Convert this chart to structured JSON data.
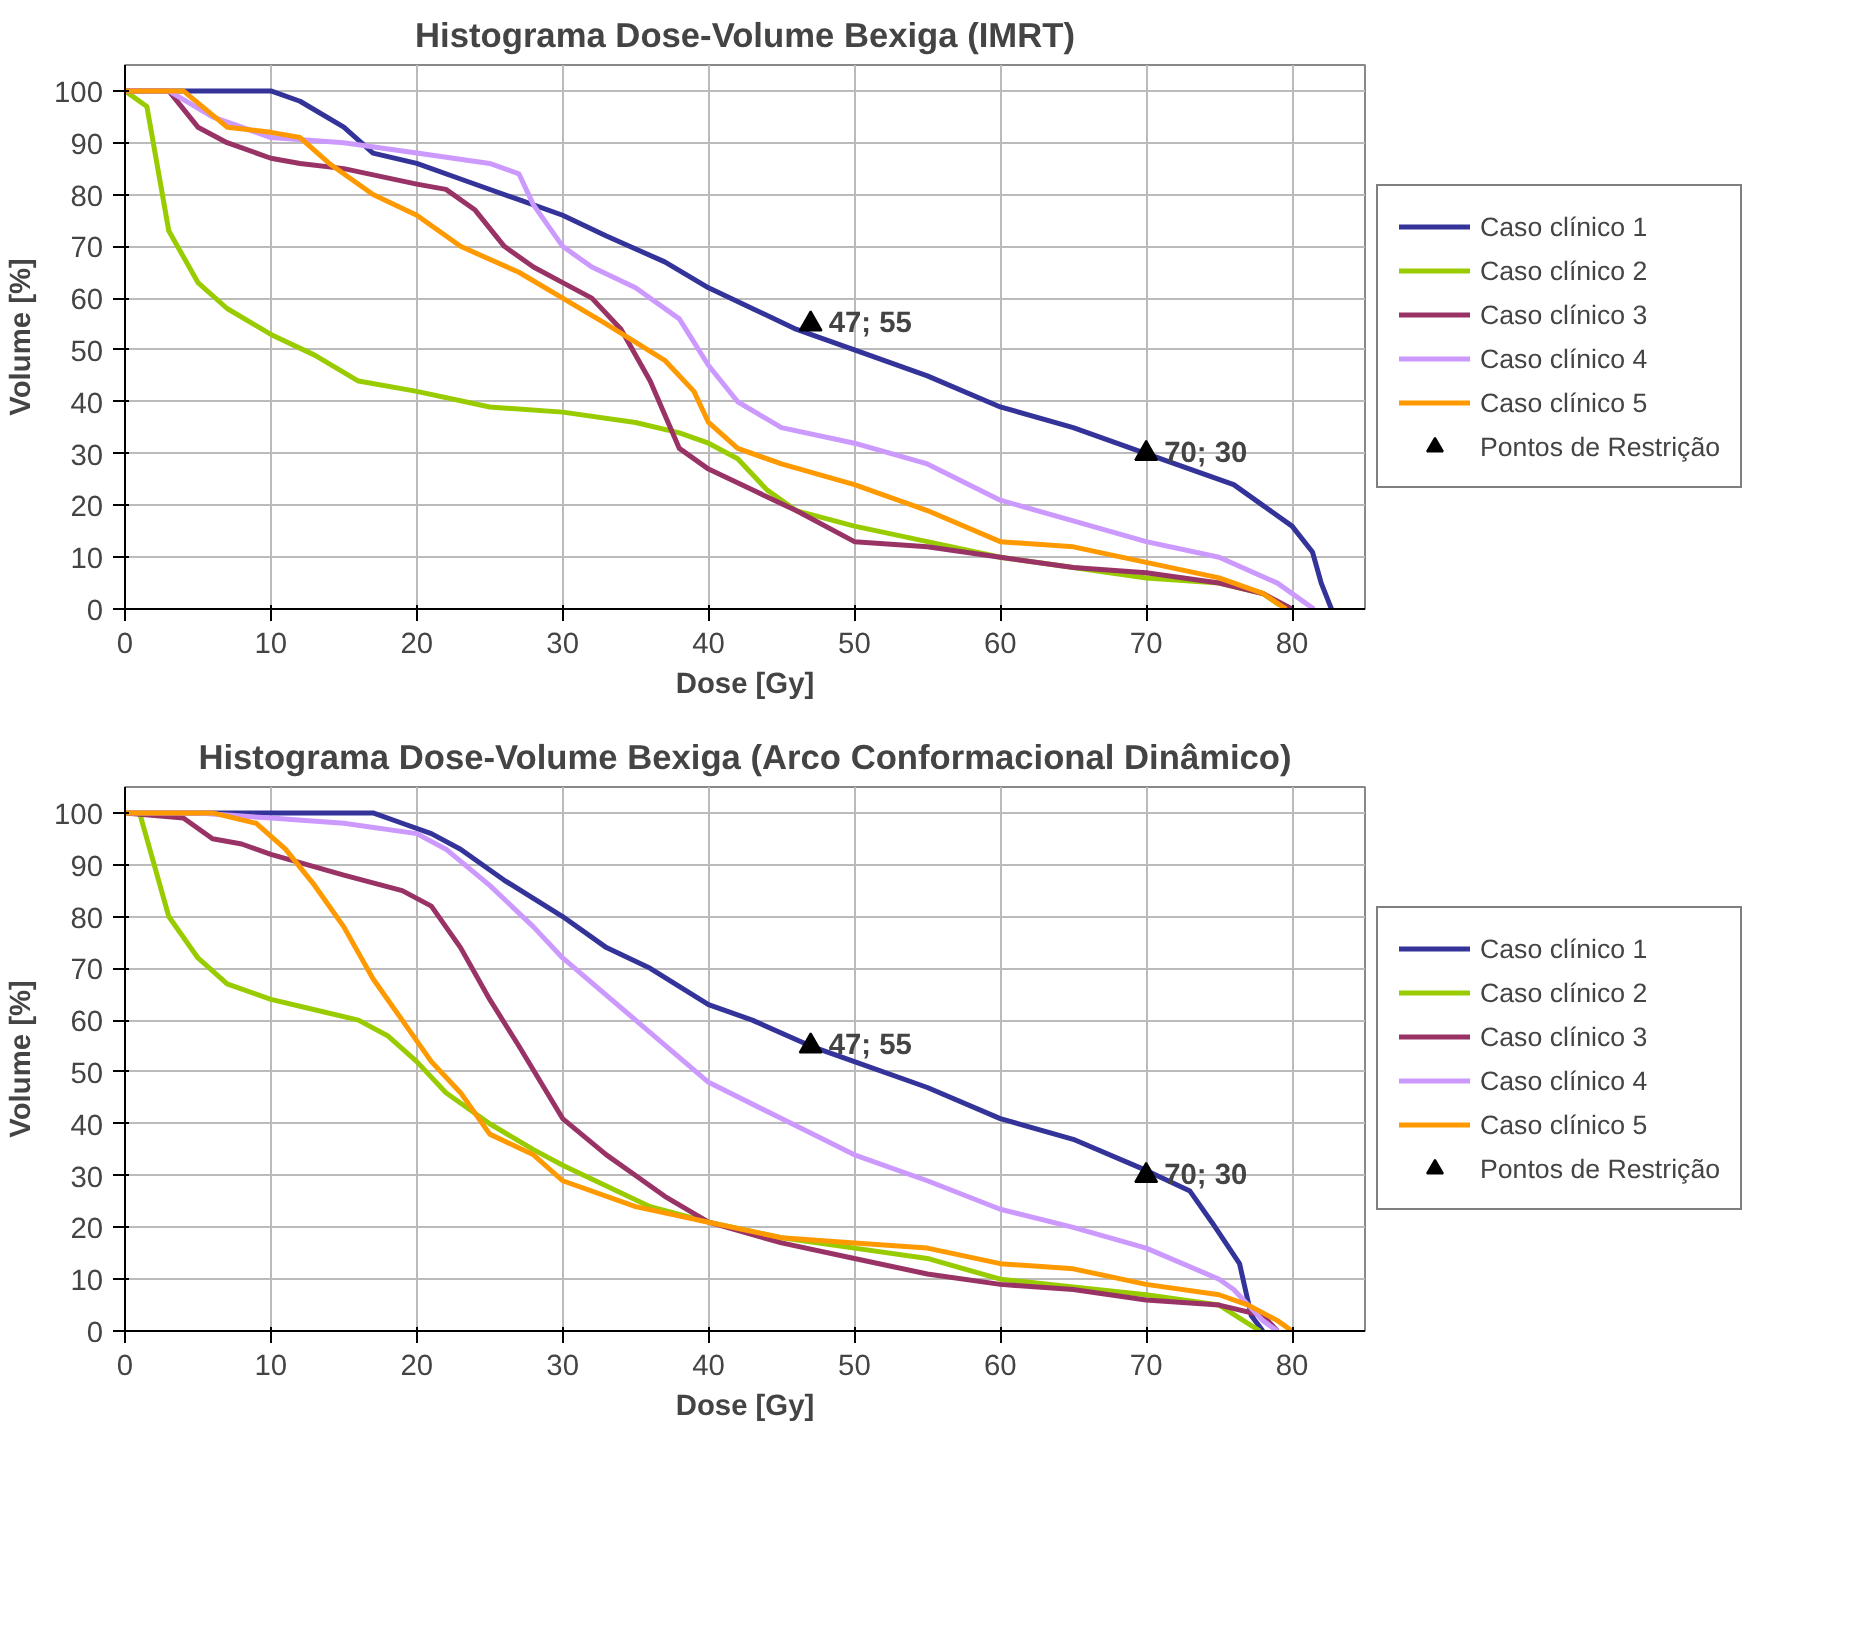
{
  "chart_data": [
    {
      "type": "line",
      "title": "Histograma Dose-Volume Bexiga (IMRT)",
      "xlabel": "Dose [Gy]",
      "ylabel": "Volume [%]",
      "xlim": [
        0,
        85
      ],
      "ylim": [
        0,
        105
      ],
      "xticks": [
        0,
        10,
        20,
        30,
        40,
        50,
        60,
        70,
        80
      ],
      "yticks": [
        0,
        10,
        20,
        30,
        40,
        50,
        60,
        70,
        80,
        90,
        100
      ],
      "grid": true,
      "legend": "right",
      "marker": "none",
      "line_style": "solid",
      "series": [
        {
          "name": "Caso clínico 1",
          "color": "#333399",
          "x": [
            0,
            10,
            12,
            15,
            17,
            20,
            23,
            27,
            30,
            33,
            37,
            40,
            43,
            46,
            47,
            50,
            55,
            60,
            65,
            70,
            73,
            76,
            78,
            80,
            81.4,
            82,
            82.7
          ],
          "values": [
            100,
            100,
            98,
            93,
            88,
            86,
            83,
            79,
            76,
            72,
            67,
            62,
            58,
            54,
            53,
            50,
            45,
            39,
            35,
            30,
            27,
            24,
            20,
            16,
            11,
            5,
            0
          ]
        },
        {
          "name": "Caso clínico 2",
          "color": "#99cc00",
          "x": [
            0,
            1.5,
            3,
            5,
            7,
            10,
            13,
            16,
            20,
            25,
            30,
            35,
            38,
            40,
            42,
            44,
            46,
            50,
            55,
            60,
            65,
            70,
            75,
            78,
            79,
            80
          ],
          "values": [
            100,
            97,
            73,
            63,
            58,
            53,
            49,
            44,
            42,
            39,
            38,
            36,
            34,
            32,
            29,
            23,
            19,
            16,
            13,
            10,
            8,
            6,
            5,
            3,
            1,
            0
          ]
        },
        {
          "name": "Caso clínico 3",
          "color": "#993366",
          "x": [
            0,
            3,
            5,
            7,
            10,
            12,
            15,
            20,
            22,
            24,
            26,
            28,
            30,
            32,
            34,
            36,
            38,
            40,
            43,
            46,
            50,
            55,
            60,
            65,
            70,
            75,
            78,
            80
          ],
          "values": [
            100,
            100,
            93,
            90,
            87,
            86,
            85,
            82,
            81,
            77,
            70,
            66,
            63,
            60,
            54,
            44,
            31,
            27,
            23,
            19,
            13,
            12,
            10,
            8,
            7,
            5,
            3,
            0
          ]
        },
        {
          "name": "Caso clínico 4",
          "color": "#cc99ff",
          "x": [
            0,
            3,
            6,
            10,
            15,
            20,
            25,
            27,
            28,
            30,
            32,
            35,
            38,
            40,
            42,
            45,
            50,
            55,
            60,
            65,
            70,
            75,
            79,
            81.5
          ],
          "values": [
            100,
            100,
            95,
            91,
            90,
            88,
            86,
            84,
            78,
            70,
            66,
            62,
            56,
            47,
            40,
            35,
            32,
            28,
            21,
            17,
            13,
            10,
            5,
            0
          ]
        },
        {
          "name": "Caso clínico 5",
          "color": "#ff9900",
          "x": [
            0,
            4,
            7,
            10,
            12,
            14,
            17,
            20,
            23,
            27,
            30,
            33,
            37,
            39,
            40,
            42,
            45,
            50,
            55,
            60,
            65,
            70,
            75,
            78,
            79.6
          ],
          "values": [
            100,
            100,
            93,
            92,
            91,
            86,
            80,
            76,
            70,
            65,
            60,
            55,
            48,
            42,
            36,
            31,
            28,
            24,
            19,
            13,
            12,
            9,
            6,
            3,
            0
          ]
        },
        {
          "name": "Pontos de Restrição",
          "type": "scatter",
          "marker": "triangle",
          "color": "#000000",
          "x": [
            47,
            70
          ],
          "values": [
            55,
            30
          ],
          "value_labels": [
            "47; 55",
            "70; 30"
          ]
        }
      ]
    },
    {
      "type": "line",
      "title": "Histograma Dose-Volume Bexiga (Arco Conformacional Dinâmico)",
      "xlabel": "Dose [Gy]",
      "ylabel": "Volume [%]",
      "xlim": [
        0,
        85
      ],
      "ylim": [
        0,
        105
      ],
      "xticks": [
        0,
        10,
        20,
        30,
        40,
        50,
        60,
        70,
        80
      ],
      "yticks": [
        0,
        10,
        20,
        30,
        40,
        50,
        60,
        70,
        80,
        90,
        100
      ],
      "grid": true,
      "legend": "right",
      "marker": "none",
      "line_style": "solid",
      "series": [
        {
          "name": "Caso clínico 1",
          "color": "#333399",
          "x": [
            0,
            17,
            19,
            21,
            23,
            26,
            30,
            33,
            36,
            40,
            43,
            47,
            50,
            55,
            60,
            65,
            70,
            73,
            74.5,
            76.4,
            77.2,
            78
          ],
          "values": [
            100,
            100,
            98,
            96,
            93,
            87,
            80,
            74,
            70,
            63,
            60,
            55,
            52,
            47,
            41,
            37,
            31,
            27,
            21,
            13,
            3,
            0
          ]
        },
        {
          "name": "Caso clínico 2",
          "color": "#99cc00",
          "x": [
            0,
            1,
            3,
            5,
            7,
            10,
            13,
            16,
            18,
            20,
            22,
            25,
            28,
            30,
            33,
            36,
            40,
            45,
            50,
            55,
            60,
            65,
            70,
            75,
            77.8
          ],
          "values": [
            100,
            100,
            80,
            72,
            67,
            64,
            62,
            60,
            57,
            52,
            46,
            40,
            35,
            32,
            28,
            24,
            21,
            18,
            16,
            14,
            10,
            8.5,
            7,
            5,
            0
          ]
        },
        {
          "name": "Caso clínico 3",
          "color": "#993366",
          "x": [
            0,
            4,
            6,
            8,
            10,
            15,
            19,
            21,
            23,
            25,
            27,
            30,
            33,
            35,
            37,
            40,
            45,
            50,
            55,
            60,
            65,
            70,
            75,
            78,
            79
          ],
          "values": [
            100,
            99,
            95,
            94,
            92,
            88,
            85,
            82,
            74,
            64,
            55,
            41,
            34,
            30,
            26,
            21,
            17,
            14,
            11,
            9,
            8,
            6,
            5,
            3,
            0
          ]
        },
        {
          "name": "Caso clínico 4",
          "color": "#cc99ff",
          "x": [
            0,
            5,
            10,
            15,
            20,
            22,
            25,
            28,
            30,
            35,
            40,
            45,
            50,
            55,
            60,
            65,
            70,
            75,
            76,
            78,
            79
          ],
          "values": [
            100,
            100,
            99,
            98,
            96,
            93,
            86,
            78,
            72,
            60,
            48,
            41,
            34,
            29,
            23.5,
            20,
            16,
            10,
            8,
            2,
            0
          ]
        },
        {
          "name": "Caso clínico 5",
          "color": "#ff9900",
          "x": [
            0,
            6,
            9,
            11,
            13,
            15,
            17,
            19,
            21,
            23,
            25,
            28,
            30,
            35,
            40,
            45,
            50,
            55,
            60,
            65,
            70,
            75,
            77,
            79,
            80
          ],
          "values": [
            100,
            100,
            98,
            93,
            86,
            78,
            68,
            60,
            52,
            46,
            38,
            34,
            29,
            24,
            21,
            18,
            17,
            16,
            13,
            12,
            9,
            7,
            5,
            2,
            0
          ]
        },
        {
          "name": "Pontos de Restrição",
          "type": "scatter",
          "marker": "triangle",
          "color": "#000000",
          "x": [
            47,
            70
          ],
          "values": [
            55,
            30
          ],
          "value_labels": [
            "47; 55",
            "70; 30"
          ]
        }
      ]
    }
  ]
}
